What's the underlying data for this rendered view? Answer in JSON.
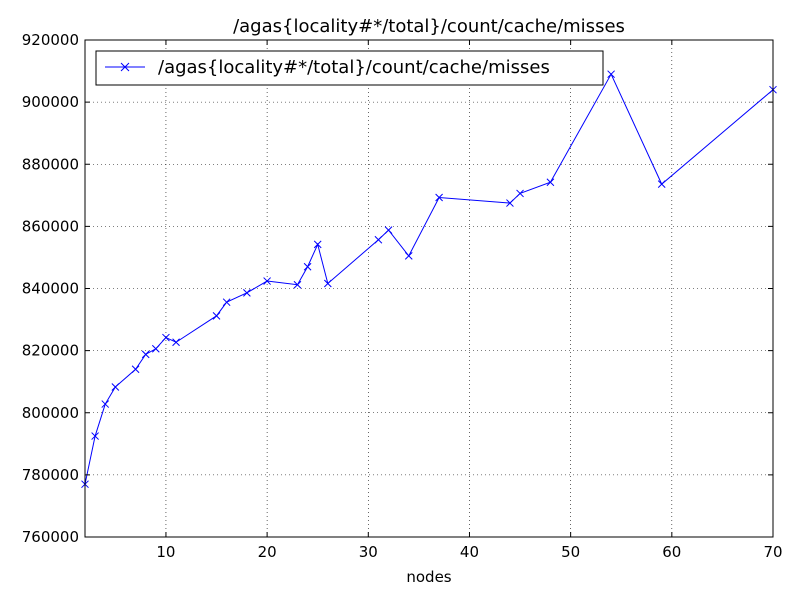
{
  "chart_data": {
    "type": "line",
    "title": "/agas{locality#*/total}/count/cache/misses",
    "xlabel": "nodes",
    "ylabel": "",
    "xlim": [
      2,
      70
    ],
    "ylim": [
      760000,
      920000
    ],
    "xticks": [
      10,
      20,
      30,
      40,
      50,
      60,
      70
    ],
    "yticks": [
      760000,
      780000,
      800000,
      820000,
      840000,
      860000,
      880000,
      900000,
      920000
    ],
    "grid": true,
    "legend_position": "top-left",
    "series": [
      {
        "name": "/agas{locality#*/total}/count/cache/misses",
        "color": "#0000ff",
        "marker": "x",
        "x": [
          2,
          3,
          4,
          5,
          7,
          8,
          9,
          10,
          11,
          15,
          16,
          18,
          20,
          23,
          24,
          25,
          26,
          31,
          32,
          34,
          37,
          44,
          45,
          48,
          54,
          59,
          70
        ],
        "y": [
          777000,
          792500,
          802800,
          808300,
          814000,
          818800,
          820600,
          824200,
          822700,
          831200,
          835600,
          838600,
          842400,
          841200,
          847000,
          854200,
          841600,
          855700,
          858800,
          850500,
          869300,
          867500,
          870600,
          874200,
          909000,
          873600,
          904000
        ]
      }
    ]
  }
}
